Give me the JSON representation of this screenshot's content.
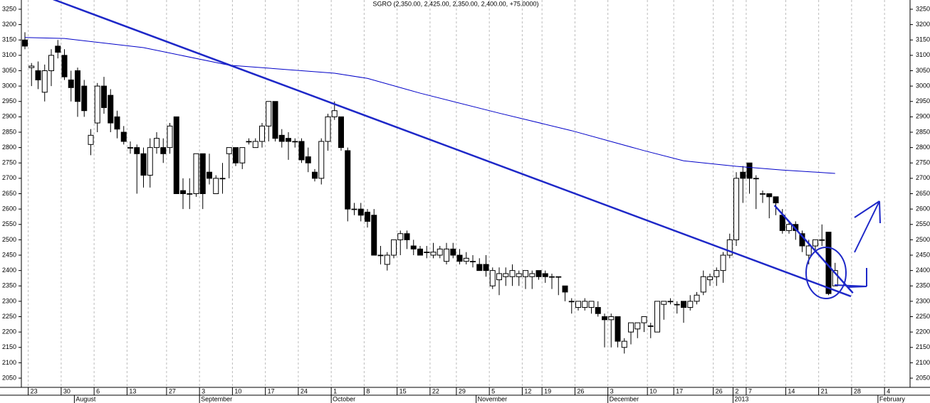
{
  "chart_data": {
    "type": "candlestick",
    "title": "SGRO (2,350.00, 2,425.00, 2,350.00, 2,400.00, +75.0000)",
    "ylim": [
      2020,
      3280
    ],
    "yticks": [
      2050,
      2100,
      2150,
      2200,
      2250,
      2300,
      2350,
      2400,
      2450,
      2500,
      2550,
      2600,
      2650,
      2700,
      2750,
      2800,
      2850,
      2900,
      2950,
      3000,
      3050,
      3100,
      3150,
      3200,
      3250
    ],
    "categories": [
      null,
      "23",
      null,
      null,
      null,
      null,
      "30",
      null,
      null,
      null,
      null,
      "6",
      null,
      null,
      null,
      null,
      "13",
      null,
      null,
      null,
      null,
      null,
      "27",
      null,
      null,
      null,
      null,
      "3",
      null,
      null,
      null,
      null,
      "10",
      null,
      null,
      null,
      null,
      "17",
      null,
      null,
      null,
      null,
      "24",
      null,
      null,
      null,
      null,
      "1",
      null,
      null,
      null,
      null,
      "8",
      null,
      null,
      null,
      null,
      "15",
      null,
      null,
      null,
      null,
      "22",
      null,
      null,
      null,
      "29",
      null,
      null,
      null,
      null,
      "5",
      null,
      null,
      null,
      null,
      "12",
      null,
      null,
      "19",
      null,
      null,
      null,
      null,
      "26",
      null,
      null,
      null,
      null,
      "3",
      null,
      null,
      null,
      null,
      null,
      "10",
      null,
      null,
      null,
      "17",
      null,
      null,
      null,
      null,
      null,
      "26",
      null,
      null,
      "2",
      null,
      "7",
      null,
      null,
      null,
      null,
      null,
      "14",
      null,
      null,
      null,
      null,
      "21",
      null,
      null,
      null,
      null,
      "28",
      null,
      null,
      null,
      null,
      "4",
      null
    ],
    "month_labels": [
      null,
      null,
      null,
      null,
      null,
      null,
      null,
      null,
      "August",
      null,
      null,
      null,
      null,
      null,
      null,
      null,
      null,
      null,
      null,
      null,
      null,
      null,
      null,
      null,
      null,
      null,
      null,
      "September",
      null,
      null,
      null,
      null,
      null,
      null,
      null,
      null,
      null,
      null,
      null,
      null,
      null,
      null,
      null,
      null,
      null,
      null,
      null,
      "October",
      null,
      null,
      null,
      null,
      null,
      null,
      null,
      null,
      null,
      null,
      null,
      null,
      null,
      null,
      null,
      null,
      null,
      null,
      null,
      null,
      null,
      "November",
      null,
      null,
      null,
      null,
      null,
      null,
      null,
      null,
      null,
      null,
      null,
      null,
      null,
      null,
      null,
      null,
      null,
      null,
      null,
      "December",
      null,
      null,
      null,
      null,
      null,
      null,
      null,
      null,
      null,
      null,
      null,
      null,
      null,
      null,
      null,
      null,
      null,
      null,
      "2013",
      null,
      null,
      null,
      null,
      null,
      null,
      null,
      null,
      null,
      null,
      null,
      null,
      null,
      null,
      null,
      null,
      null,
      null,
      null,
      null,
      null,
      "February",
      null,
      null
    ],
    "candles": [
      [
        3150,
        3175,
        3120,
        3130
      ],
      [
        3060,
        3075,
        3000,
        3065
      ],
      [
        3050,
        3080,
        2990,
        3020
      ],
      [
        2980,
        3070,
        2950,
        3050
      ],
      [
        3050,
        3120,
        3000,
        3100
      ],
      [
        3130,
        3150,
        3090,
        3110
      ],
      [
        3100,
        3120,
        3020,
        3030
      ],
      [
        3020,
        3050,
        2950,
        2995
      ],
      [
        3050,
        3060,
        2900,
        2950
      ],
      [
        3000,
        3020,
        2900,
        2920
      ],
      [
        2810,
        2860,
        2775,
        2840
      ],
      [
        2880,
        3010,
        2850,
        3000
      ],
      [
        3000,
        3030,
        2910,
        2930
      ],
      [
        2970,
        2990,
        2850,
        2880
      ],
      [
        2900,
        2920,
        2830,
        2860
      ],
      [
        2850,
        2870,
        2810,
        2820
      ],
      [
        2800,
        2820,
        2780,
        2800
      ],
      [
        2800,
        2810,
        2650,
        2780
      ],
      [
        2780,
        2800,
        2670,
        2710
      ],
      [
        2710,
        2830,
        2670,
        2800
      ],
      [
        2800,
        2850,
        2780,
        2830
      ],
      [
        2800,
        2830,
        2750,
        2780
      ],
      [
        2800,
        2880,
        2780,
        2870
      ],
      [
        2900,
        2900,
        2650,
        2650
      ],
      [
        2660,
        2700,
        2600,
        2650
      ],
      [
        2650,
        2700,
        2600,
        2650
      ],
      [
        2650,
        2780,
        2640,
        2780
      ],
      [
        2780,
        2780,
        2600,
        2650
      ],
      [
        2720,
        2780,
        2680,
        2700
      ],
      [
        2650,
        2710,
        2650,
        2700
      ],
      [
        2700,
        2750,
        2650,
        2700
      ],
      [
        2780,
        2800,
        2700,
        2800
      ],
      [
        2800,
        2800,
        2740,
        2750
      ],
      [
        2750,
        2800,
        2730,
        2800
      ],
      [
        2820,
        2830,
        2810,
        2820
      ],
      [
        2800,
        2830,
        2800,
        2820
      ],
      [
        2820,
        2880,
        2800,
        2870
      ],
      [
        2870,
        2950,
        2820,
        2950
      ],
      [
        2950,
        2950,
        2820,
        2830
      ],
      [
        2840,
        2860,
        2800,
        2820
      ],
      [
        2830,
        2850,
        2760,
        2820
      ],
      [
        2820,
        2830,
        2800,
        2820
      ],
      [
        2820,
        2830,
        2750,
        2760
      ],
      [
        2770,
        2800,
        2720,
        2750
      ],
      [
        2720,
        2730,
        2690,
        2700
      ],
      [
        2700,
        2830,
        2680,
        2820
      ],
      [
        2820,
        2910,
        2790,
        2900
      ],
      [
        2900,
        2950,
        2890,
        2920
      ],
      [
        2900,
        2900,
        2790,
        2800
      ],
      [
        2790,
        2800,
        2560,
        2600
      ],
      [
        2600,
        2620,
        2580,
        2600
      ],
      [
        2600,
        2620,
        2560,
        2580
      ],
      [
        2590,
        2600,
        2540,
        2560
      ],
      [
        2580,
        2600,
        2450,
        2450
      ],
      [
        2450,
        2480,
        2420,
        2450
      ],
      [
        2420,
        2460,
        2400,
        2450
      ],
      [
        2450,
        2500,
        2440,
        2500
      ],
      [
        2500,
        2530,
        2450,
        2520
      ],
      [
        2520,
        2530,
        2470,
        2500
      ],
      [
        2480,
        2500,
        2450,
        2470
      ],
      [
        2470,
        2480,
        2450,
        2450
      ],
      [
        2460,
        2480,
        2440,
        2460
      ],
      [
        2450,
        2490,
        2440,
        2460
      ],
      [
        2450,
        2480,
        2440,
        2470
      ],
      [
        2430,
        2490,
        2420,
        2470
      ],
      [
        2470,
        2490,
        2440,
        2450
      ],
      [
        2450,
        2470,
        2420,
        2430
      ],
      [
        2430,
        2460,
        2420,
        2440
      ],
      [
        2430,
        2450,
        2410,
        2430
      ],
      [
        2420,
        2440,
        2400,
        2400
      ],
      [
        2420,
        2450,
        2380,
        2400
      ],
      [
        2350,
        2410,
        2340,
        2400
      ],
      [
        2370,
        2410,
        2320,
        2390
      ],
      [
        2380,
        2410,
        2350,
        2390
      ],
      [
        2380,
        2420,
        2350,
        2400
      ],
      [
        2380,
        2400,
        2350,
        2390
      ],
      [
        2380,
        2400,
        2340,
        2400
      ],
      [
        2380,
        2400,
        2340,
        2390
      ],
      [
        2400,
        2400,
        2370,
        2380
      ],
      [
        2390,
        2400,
        2360,
        2380
      ],
      [
        2380,
        2390,
        2340,
        2380
      ],
      [
        2380,
        2380,
        2320,
        2380
      ],
      [
        2350,
        2350,
        2300,
        2330
      ],
      [
        2300,
        2310,
        2260,
        2300
      ],
      [
        2280,
        2300,
        2270,
        2300
      ],
      [
        2280,
        2310,
        2270,
        2300
      ],
      [
        2280,
        2300,
        2260,
        2300
      ],
      [
        2280,
        2300,
        2250,
        2260
      ],
      [
        2250,
        2260,
        2150,
        2240
      ],
      [
        2240,
        2260,
        2150,
        2250
      ],
      [
        2250,
        2250,
        2150,
        2170
      ],
      [
        2150,
        2180,
        2130,
        2170
      ],
      [
        2200,
        2230,
        2160,
        2230
      ],
      [
        2210,
        2230,
        2180,
        2230
      ],
      [
        2230,
        2250,
        2200,
        2250
      ],
      [
        2220,
        2230,
        2180,
        2220
      ],
      [
        2200,
        2300,
        2200,
        2300
      ],
      [
        2290,
        2300,
        2240,
        2300
      ],
      [
        2300,
        2310,
        2290,
        2300
      ],
      [
        2290,
        2300,
        2260,
        2290
      ],
      [
        2300,
        2300,
        2230,
        2280
      ],
      [
        2280,
        2320,
        2270,
        2300
      ],
      [
        2300,
        2330,
        2290,
        2320
      ],
      [
        2330,
        2400,
        2320,
        2380
      ],
      [
        2370,
        2390,
        2350,
        2380
      ],
      [
        2380,
        2410,
        2350,
        2400
      ],
      [
        2400,
        2460,
        2360,
        2450
      ],
      [
        2450,
        2520,
        2440,
        2500
      ],
      [
        2500,
        2720,
        2480,
        2700
      ],
      [
        2720,
        2740,
        2620,
        2700
      ],
      [
        2750,
        2750,
        2650,
        2700
      ],
      [
        2700,
        2710,
        2600,
        2700
      ],
      [
        2650,
        2660,
        2620,
        2650
      ],
      [
        2650,
        2650,
        2570,
        2640
      ],
      [
        2640,
        2640,
        2580,
        2620
      ],
      [
        2580,
        2600,
        2520,
        2530
      ],
      [
        2530,
        2560,
        2520,
        2550
      ],
      [
        2550,
        2560,
        2500,
        2530
      ],
      [
        2520,
        2530,
        2460,
        2480
      ],
      [
        2450,
        2500,
        2420,
        2480
      ],
      [
        2480,
        2500,
        2460,
        2500
      ],
      [
        2500,
        2550,
        2480,
        2500
      ],
      [
        2525,
        2525,
        2320,
        2325
      ],
      [
        2350,
        2425,
        2350,
        2400
      ],
      null,
      null,
      null,
      null,
      null,
      null,
      null,
      null,
      null
    ],
    "moving_average": {
      "x": [
        0,
        6,
        18,
        31,
        47,
        52,
        60,
        72,
        83,
        94,
        100,
        108,
        115,
        123
      ],
      "values": [
        3158,
        3155,
        3125,
        3068,
        3042,
        3025,
        2977,
        2912,
        2855,
        2790,
        2757,
        2739,
        2727,
        2716
      ],
      "color": "#0000c8"
    },
    "trendlines": [
      {
        "from": [
          4.3,
          3282
        ],
        "to": [
          125.4,
          2316
        ],
        "color": "#1e28c8"
      },
      {
        "from": [
          113.8,
          2612
        ],
        "to": [
          125.7,
          2327
        ],
        "color": "#1e28c8"
      }
    ],
    "up_color": "#ffffff",
    "down_color": "#000000"
  }
}
